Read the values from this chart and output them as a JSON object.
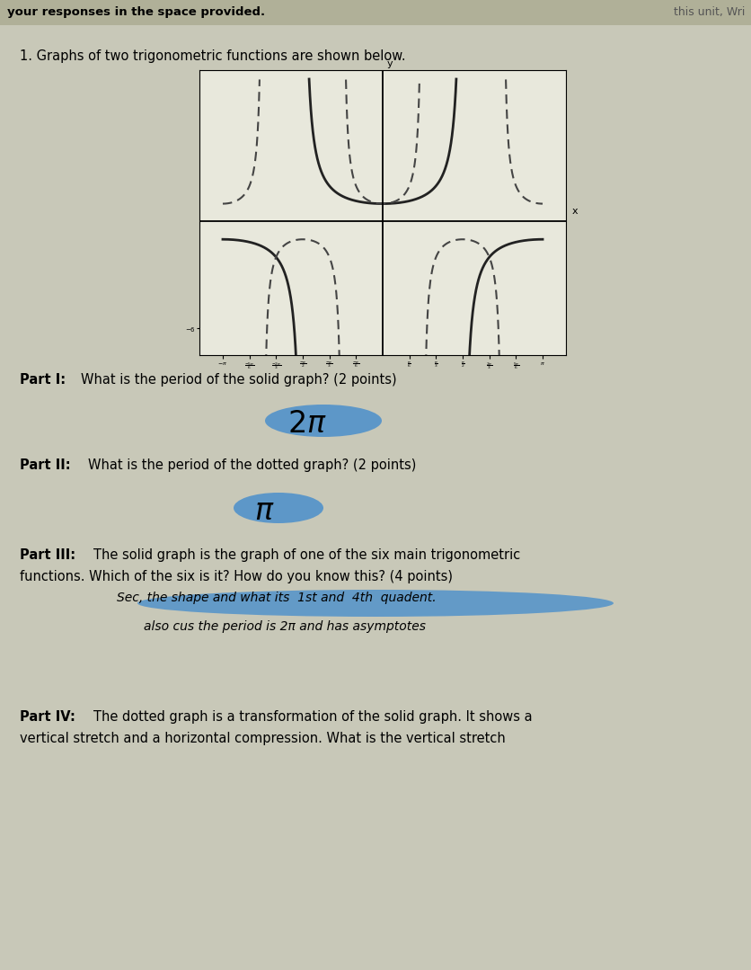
{
  "bg_color": "#c8c8b8",
  "graph_bg": "#e8e8dc",
  "solid_color": "#222222",
  "dotted_color": "#444444",
  "answer_highlight": "#4a8fcc",
  "text_color": "#111111",
  "header_bg": "#b0b098",
  "graph_xlim_pi": 3.6,
  "graph_ylim": [
    -7.5,
    8.5
  ],
  "graph_clip": 8,
  "part1_q": "What is the period of the solid graph? (2 points)",
  "part2_q": "What is the period of the dotted graph? (2 points)",
  "part3_q1": "The solid graph is the graph of one of the six main trigonometric",
  "part3_q2": "functions. Which of the six is it? How do you know this? (4 points)",
  "part3_a1": "Sec, the shape and what its 1st and 4th quadent.",
  "part3_a2": "also cus the period is 2π and has asymptotes",
  "part4_q1": "The dotted graph is a transformation of the solid graph. It shows a",
  "part4_q2": "vertical stretch and a horizontal compression. What is the vertical stretch"
}
